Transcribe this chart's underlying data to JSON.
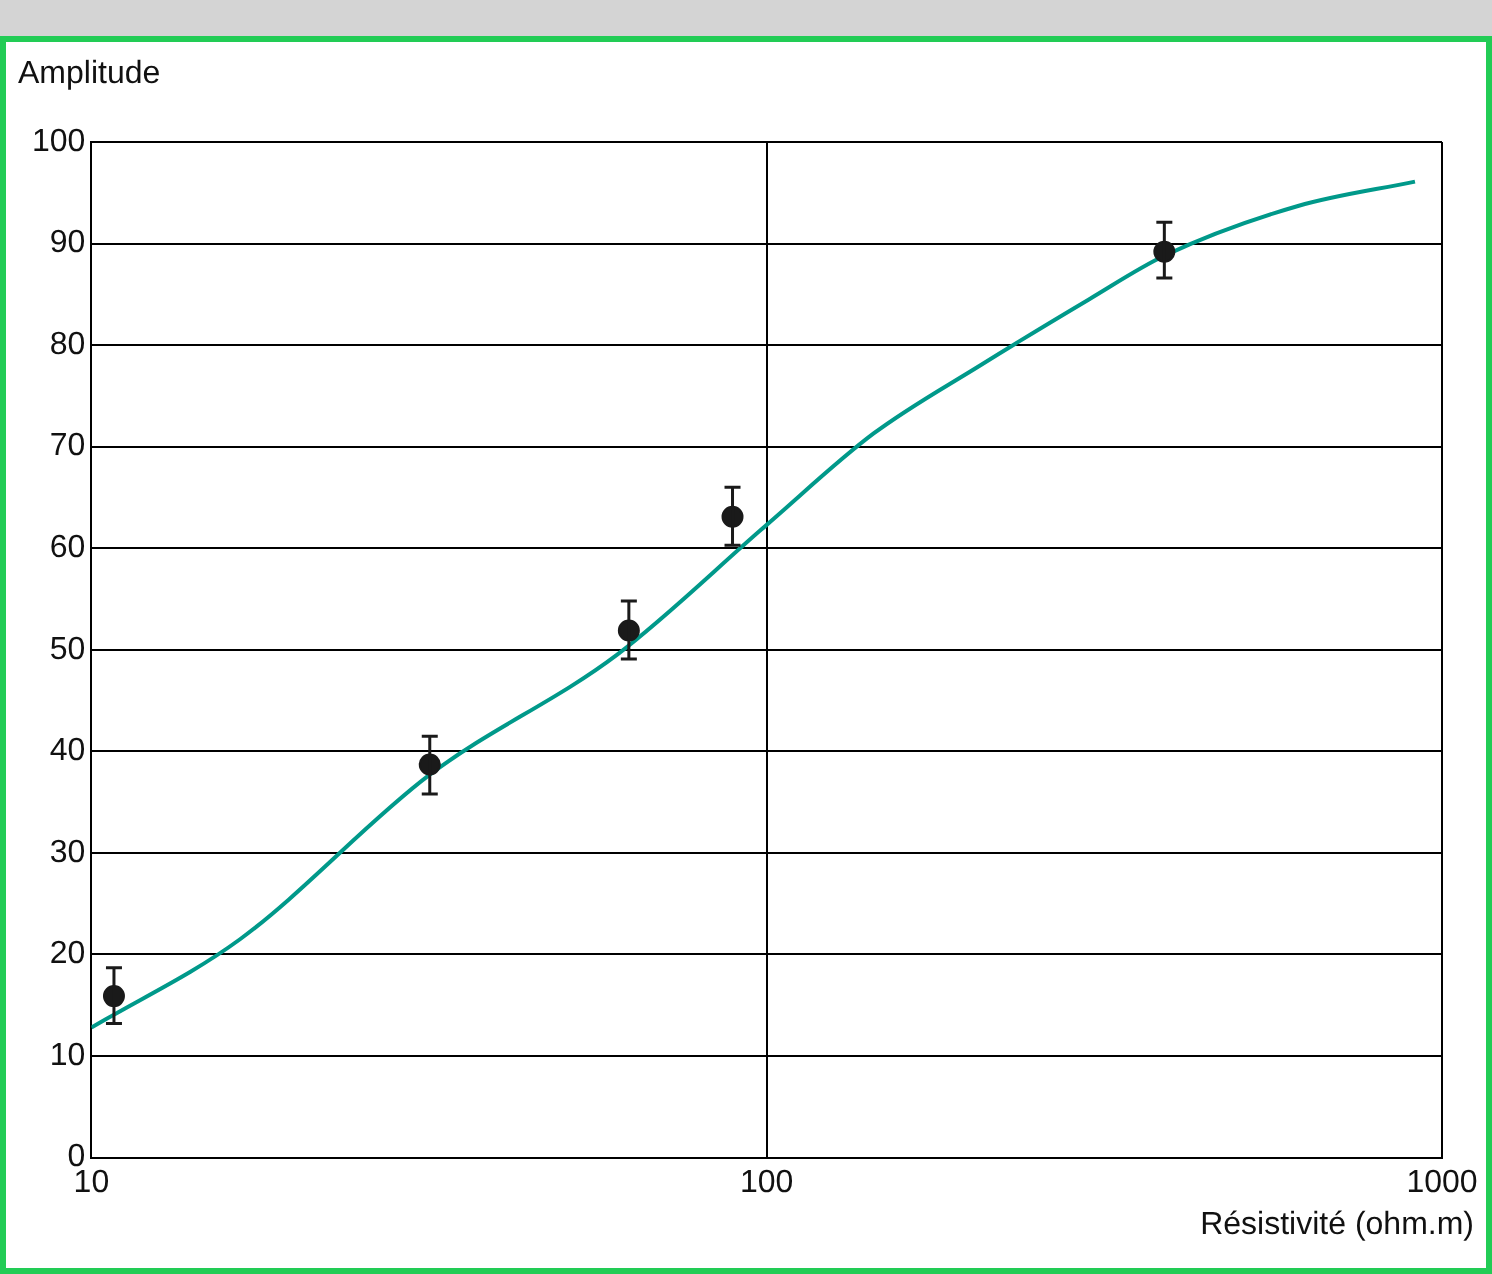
{
  "chart_data": {
    "type": "scatter",
    "xlabel": "Résistivité (ohm.m)",
    "ylabel": "Amplitude",
    "log": "x",
    "xlim": [
      10,
      1000
    ],
    "xticks": [
      10,
      100,
      1000
    ],
    "ylim": [
      0,
      100
    ],
    "yticks": [
      0,
      10,
      20,
      30,
      40,
      50,
      60,
      70,
      80,
      90,
      100
    ],
    "grid": true,
    "legend": false,
    "series": [
      {
        "color": "#1a1a1a",
        "marker": "circle",
        "x": [
          10.8,
          31.7,
          62.5,
          89,
          388
        ],
        "values": [
          15.9,
          38.7,
          51.9,
          63.1,
          89.2
        ],
        "errors": [
          [
            13.2,
            18.7
          ],
          [
            35.8,
            41.5
          ],
          [
            49.1,
            54.8
          ],
          [
            60.3,
            66
          ],
          [
            86.6,
            92.1
          ]
        ]
      },
      {
        "type": "line",
        "color": "#00998a",
        "marker": "none",
        "line_style": "solid",
        "x": [
          10,
          16.6,
          31.7,
          60,
          100,
          144,
          207,
          300,
          388,
          612,
          912
        ],
        "values": [
          12.8,
          21.5,
          37.7,
          49.5,
          62.3,
          71.3,
          78,
          84.5,
          88.8,
          93.7,
          96.1
        ]
      }
    ]
  }
}
